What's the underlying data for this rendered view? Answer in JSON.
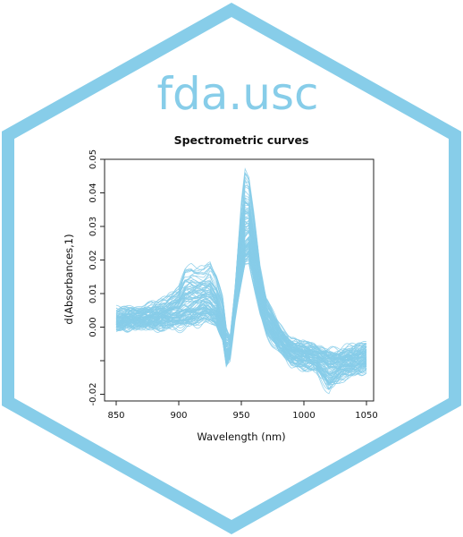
{
  "logo": {
    "name": "fda.usc",
    "color": "#87cde9"
  },
  "chart_data": {
    "type": "line",
    "title": "Spectrometric curves",
    "xlabel": "Wavelength (nm)",
    "ylabel": "d(Absorbances,1)",
    "xlim": [
      850,
      1050
    ],
    "ylim": [
      -0.022,
      0.05
    ],
    "x_ticks": [
      850,
      900,
      950,
      1000,
      1050
    ],
    "x_tick_labels": [
      "850",
      "900",
      "950",
      "1000",
      "1050"
    ],
    "y_ticks": [
      -0.02,
      -0.01,
      0.0,
      0.01,
      0.02,
      0.03,
      0.04,
      0.05
    ],
    "y_tick_labels": [
      "-0.02",
      "",
      "0.00",
      "0.01",
      "0.02",
      "0.03",
      "0.04",
      "0.05"
    ],
    "grid": false,
    "line_color": "#87cde9",
    "series_count": 100,
    "curve_profile": {
      "x": [
        850,
        860,
        870,
        880,
        890,
        900,
        905,
        910,
        915,
        920,
        925,
        930,
        935,
        938,
        941,
        945,
        950,
        953,
        956,
        960,
        965,
        970,
        980,
        990,
        1000,
        1010,
        1020,
        1030,
        1040,
        1050
      ],
      "mean": [
        0.0015,
        0.002,
        0.0025,
        0.003,
        0.0035,
        0.0045,
        0.0055,
        0.006,
        0.0065,
        0.0075,
        0.0065,
        0.0045,
        -0.002,
        -0.008,
        -0.006,
        0.006,
        0.02,
        0.026,
        0.027,
        0.02,
        0.01,
        0.003,
        -0.003,
        -0.007,
        -0.008,
        -0.009,
        -0.0105,
        -0.0105,
        -0.0095,
        -0.009
      ],
      "min": [
        -0.0005,
        0.0,
        0.0,
        0.0,
        0.0,
        0.0,
        0.0,
        0.0005,
        0.001,
        0.002,
        0.002,
        0.001,
        -0.003,
        -0.011,
        -0.009,
        0.003,
        0.013,
        0.019,
        0.02,
        0.013,
        0.004,
        -0.002,
        -0.007,
        -0.011,
        -0.012,
        -0.013,
        -0.0195,
        -0.015,
        -0.014,
        -0.013
      ],
      "max": [
        0.005,
        0.0055,
        0.006,
        0.007,
        0.008,
        0.012,
        0.0175,
        0.0185,
        0.0175,
        0.017,
        0.019,
        0.015,
        0.009,
        0.0,
        -0.003,
        0.012,
        0.037,
        0.047,
        0.045,
        0.033,
        0.017,
        0.008,
        0.001,
        -0.004,
        -0.005,
        -0.006,
        -0.007,
        -0.007,
        -0.006,
        -0.005
      ]
    }
  }
}
